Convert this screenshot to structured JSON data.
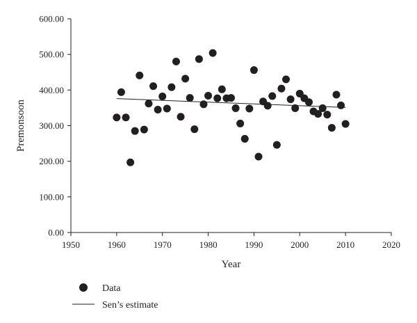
{
  "chart_data": {
    "type": "scatter",
    "title": "",
    "xlabel": "Year",
    "ylabel": "Premonsoon",
    "xlim": [
      1950,
      2020
    ],
    "ylim": [
      0,
      600
    ],
    "x_ticks": [
      1950,
      1960,
      1970,
      1980,
      1990,
      2000,
      2010,
      2020
    ],
    "y_ticks": [
      0,
      100,
      200,
      300,
      400,
      500,
      600
    ],
    "x_tick_labels": [
      "1950",
      "1960",
      "1970",
      "1980",
      "1990",
      "2000",
      "2010",
      "2020"
    ],
    "y_tick_labels": [
      "0.00",
      "100.00",
      "200.00",
      "300.00",
      "400.00",
      "500.00",
      "600.00"
    ],
    "grid": false,
    "legend_position": "bottom-left",
    "colors": {
      "marker": "#231f20",
      "line": "#231f20",
      "axis": "#231f20"
    },
    "series": [
      {
        "name": "Data",
        "kind": "scatter",
        "points": [
          [
            1960,
            323
          ],
          [
            1961,
            394
          ],
          [
            1962,
            323
          ],
          [
            1963,
            197
          ],
          [
            1964,
            285
          ],
          [
            1965,
            441
          ],
          [
            1966,
            289
          ],
          [
            1967,
            362
          ],
          [
            1968,
            411
          ],
          [
            1969,
            345
          ],
          [
            1970,
            382
          ],
          [
            1971,
            348
          ],
          [
            1972,
            408
          ],
          [
            1973,
            480
          ],
          [
            1974,
            325
          ],
          [
            1975,
            432
          ],
          [
            1976,
            378
          ],
          [
            1977,
            290
          ],
          [
            1978,
            487
          ],
          [
            1979,
            360
          ],
          [
            1980,
            384
          ],
          [
            1981,
            504
          ],
          [
            1982,
            377
          ],
          [
            1983,
            402
          ],
          [
            1984,
            377
          ],
          [
            1985,
            378
          ],
          [
            1986,
            349
          ],
          [
            1987,
            306
          ],
          [
            1988,
            263
          ],
          [
            1989,
            348
          ],
          [
            1990,
            456
          ],
          [
            1991,
            213
          ],
          [
            1992,
            368
          ],
          [
            1993,
            356
          ],
          [
            1994,
            383
          ],
          [
            1995,
            246
          ],
          [
            1996,
            404
          ],
          [
            1997,
            430
          ],
          [
            1998,
            374
          ],
          [
            1999,
            349
          ],
          [
            2000,
            390
          ],
          [
            2001,
            377
          ],
          [
            2002,
            366
          ],
          [
            2003,
            340
          ],
          [
            2004,
            333
          ],
          [
            2005,
            349
          ],
          [
            2006,
            331
          ],
          [
            2007,
            294
          ],
          [
            2008,
            387
          ],
          [
            2009,
            357
          ],
          [
            2010,
            305
          ]
        ]
      },
      {
        "name": "Sen's estimate",
        "kind": "line",
        "points": [
          [
            1960,
            376
          ],
          [
            2010,
            351
          ]
        ]
      }
    ],
    "legend": [
      {
        "label": "Data",
        "symbol": "marker"
      },
      {
        "label": "Sen’s estimate",
        "symbol": "line"
      }
    ]
  }
}
